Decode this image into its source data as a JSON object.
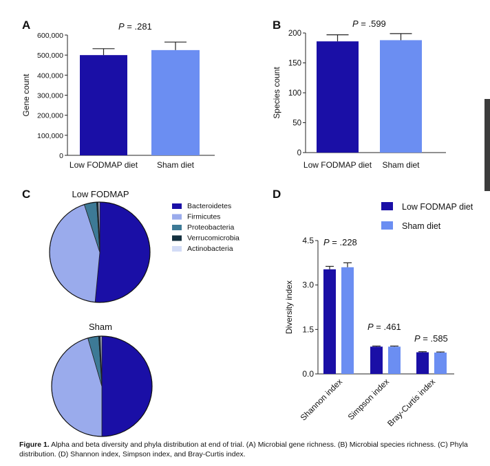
{
  "colors": {
    "low": "#1a0fa6",
    "sham": "#6b8ef2",
    "bacteroidetes": "#1a0fa6",
    "firmicutes": "#9aabec",
    "proteobacteria": "#3d7a96",
    "verrucomicrobia": "#14303f",
    "actinobacteria": "#d3dcf6"
  },
  "chart_data": [
    {
      "panel": "A",
      "type": "bar",
      "pvalue": "P = .281",
      "ylabel": "Gene count",
      "categories": [
        "Low FODMAP diet",
        "Sham diet"
      ],
      "values": [
        500000,
        525000
      ],
      "errors": [
        32000,
        40000
      ],
      "ylim": [
        0,
        600000
      ],
      "yticks": [
        0,
        100000,
        200000,
        300000,
        400000,
        500000,
        600000
      ],
      "ytick_labels": [
        "0",
        "100,000",
        "200,000",
        "300,000",
        "400,000",
        "500,000",
        "600,000"
      ]
    },
    {
      "panel": "B",
      "type": "bar",
      "pvalue": "P = .599",
      "ylabel": "Species count",
      "categories": [
        "Low FODMAP diet",
        "Sham diet"
      ],
      "values": [
        186,
        188
      ],
      "errors": [
        11,
        11
      ],
      "ylim": [
        0,
        200
      ],
      "yticks": [
        0,
        50,
        100,
        150,
        200
      ],
      "ytick_labels": [
        "0",
        "50",
        "100",
        "150",
        "200"
      ]
    },
    {
      "panel": "C",
      "type": "pie",
      "legend": [
        "Bacteroidetes",
        "Firmicutes",
        "Proteobacteria",
        "Verrucomicrobia",
        "Actinobacteria"
      ],
      "pies": [
        {
          "title": "Low FODMAP",
          "values": [
            51.5,
            43.5,
            4.0,
            0.5,
            0.5
          ]
        },
        {
          "title": "Sham",
          "values": [
            50.0,
            45.5,
            3.5,
            0.5,
            0.5
          ]
        }
      ]
    },
    {
      "panel": "D",
      "type": "bar",
      "ylabel": "Diversity index",
      "legend": [
        "Low FODMAP diet",
        "Sham diet"
      ],
      "categories": [
        "Shannon index",
        "Simpson index",
        "Bray-Curtis index"
      ],
      "pvalues": [
        "P = .228",
        "P = .461",
        "P = .585"
      ],
      "series": [
        {
          "name": "Low FODMAP diet",
          "values": [
            3.53,
            0.92,
            0.73
          ],
          "errors": [
            0.1,
            0.02,
            0.02
          ]
        },
        {
          "name": "Sham diet",
          "values": [
            3.6,
            0.92,
            0.72
          ],
          "errors": [
            0.15,
            0.02,
            0.02
          ]
        }
      ],
      "ylim": [
        0,
        4.5
      ],
      "yticks": [
        0,
        1.5,
        3.0,
        4.5
      ],
      "ytick_labels": [
        "0.0",
        "1.5",
        "3.0",
        "4.5"
      ]
    }
  ],
  "panel_labels": [
    "A",
    "B",
    "C",
    "D"
  ],
  "caption": {
    "label": "Figure 1.",
    "text": " Alpha and beta diversity and phyla distribution at end of trial. (A) Microbial gene richness. (B) Microbial species richness. (C) Phyla distribution. (D) Shannon index, Simpson index, and Bray-Curtis index."
  }
}
